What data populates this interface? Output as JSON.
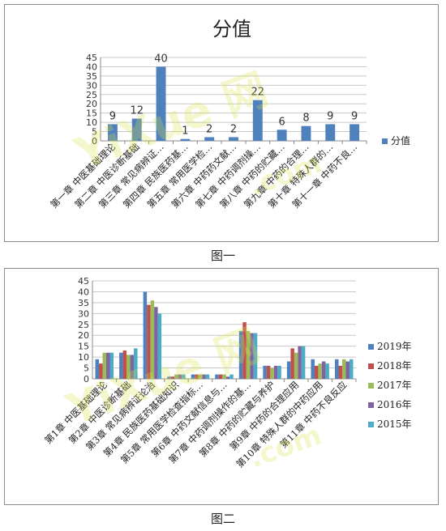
{
  "figure1": {
    "caption": "图一",
    "chart_data": {
      "type": "bar",
      "title": "分值",
      "categories": [
        "第一章 中医基础理论",
        "第二章 中医诊断基础",
        "第三章 常见病辨证…",
        "第四章 民族医药基…",
        "第五章 常用医学检…",
        "第六章 中药药文献…",
        "第七章 中药调剂操…",
        "第八章 中药的贮藏…",
        "第九章 中药的合理…",
        "第十章 特殊人群的…",
        "第十一章 中药不良…"
      ],
      "series": [
        {
          "name": "分值",
          "color": "#4f81bd",
          "values": [
            9,
            12,
            40,
            1,
            2,
            2,
            22,
            6,
            8,
            9,
            9
          ]
        }
      ],
      "ylim": [
        0,
        45
      ],
      "yticks": [
        0,
        5,
        10,
        15,
        20,
        25,
        30,
        35,
        40,
        45
      ],
      "legend": "right",
      "grid": true,
      "data_labels": true
    }
  },
  "figure2": {
    "caption": "图二",
    "chart_data": {
      "type": "bar",
      "title": "",
      "categories": [
        "第1章 中医基础理论",
        "第2章 中医诊断基础",
        "第3章 常见病辨证论治",
        "第4章 民族医药基础知识",
        "第5章 常用医学检查指标…",
        "第6章 中药文献信息与…",
        "第7章 中药调剂操作的基…",
        "第8章 中药的贮藏与养护",
        "第9章 中药的合理应用",
        "第10章 特殊人群的中药应用",
        "第11章 中药不良反应"
      ],
      "series": [
        {
          "name": "2019年",
          "color": "#4f81bd",
          "values": [
            9,
            12,
            40,
            1,
            2,
            2,
            22,
            6,
            8,
            9,
            9
          ]
        },
        {
          "name": "2018年",
          "color": "#c0504d",
          "values": [
            7,
            13,
            34,
            1,
            2,
            2,
            26,
            6,
            14,
            6,
            6
          ]
        },
        {
          "name": "2017年",
          "color": "#9bbb59",
          "values": [
            12,
            11,
            36,
            2,
            2,
            2,
            22,
            5,
            12,
            7,
            9
          ]
        },
        {
          "name": "2016年",
          "color": "#8064a2",
          "values": [
            12,
            11,
            33,
            2,
            2,
            1,
            21,
            6,
            15,
            8,
            8
          ]
        },
        {
          "name": "2015年",
          "color": "#4bacc6",
          "values": [
            12,
            14,
            30,
            2,
            2,
            2,
            21,
            6,
            15,
            7,
            9
          ]
        }
      ],
      "ylim": [
        0,
        45
      ],
      "yticks": [
        0,
        5,
        10,
        15,
        20,
        25,
        30,
        35,
        40,
        45
      ],
      "legend": "right",
      "grid": true
    }
  }
}
